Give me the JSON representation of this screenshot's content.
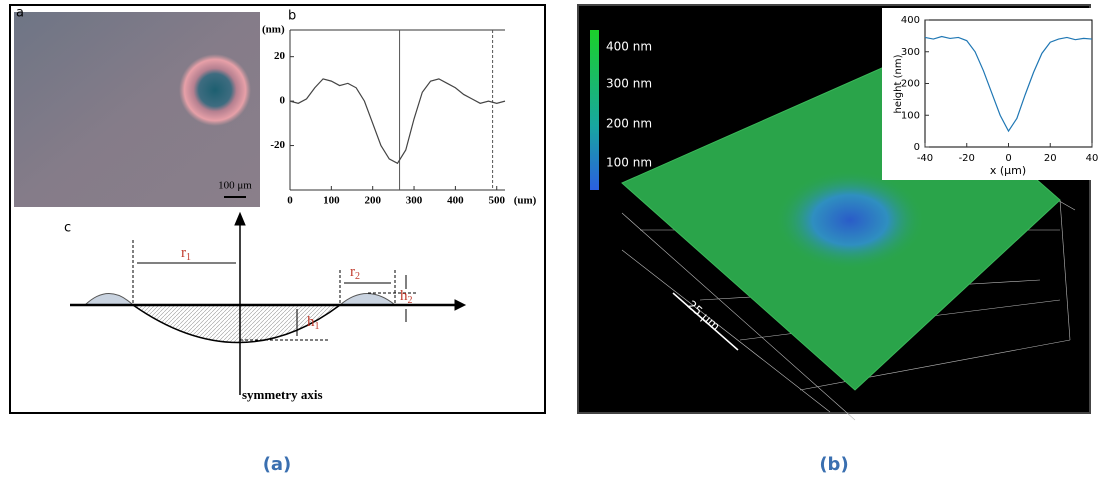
{
  "figure_a": {
    "caption": "(a)",
    "panel_labels": [
      "a",
      "b",
      "c"
    ],
    "scale_bar": "100 μm",
    "diagram": {
      "r1": {
        "label": "r",
        "sub": "1"
      },
      "r2": {
        "label": "r",
        "sub": "2"
      },
      "h1": {
        "label": "h",
        "sub": "1"
      },
      "h2": {
        "label": "h",
        "sub": "2"
      },
      "axis_label": "symmetry axis"
    }
  },
  "figure_b": {
    "caption": "(b)",
    "colorbar_labels": [
      "400 nm",
      "300 nm",
      "200 nm",
      "100 nm"
    ],
    "scale_label": "25 μm"
  },
  "chart_data": [
    {
      "type": "line",
      "ylabel": "(nm)",
      "xlabel": "(um)",
      "x": [
        0,
        20,
        40,
        60,
        80,
        100,
        120,
        140,
        160,
        180,
        200,
        220,
        240,
        260,
        280,
        300,
        320,
        340,
        360,
        380,
        400,
        420,
        440,
        460,
        480,
        500,
        520
      ],
      "series": [
        {
          "color": "#444444",
          "values": [
            0,
            -1,
            1,
            6,
            10,
            9,
            7,
            8,
            6,
            0,
            -10,
            -20,
            -26,
            -28,
            -22,
            -8,
            4,
            9,
            10,
            8,
            6,
            3,
            1,
            -1,
            0,
            -1,
            0
          ]
        }
      ],
      "vlines": [
        265,
        490
      ],
      "xlim": [
        0,
        520
      ],
      "ylim": [
        -40,
        32
      ],
      "xticks": [
        0,
        100,
        200,
        300,
        400,
        500
      ],
      "yticks": [
        20,
        0,
        -20
      ]
    },
    {
      "type": "line",
      "ylabel": "height (nm)",
      "xlabel": "x (μm)",
      "x": [
        -40,
        -36,
        -32,
        -28,
        -24,
        -20,
        -16,
        -12,
        -8,
        -4,
        0,
        4,
        8,
        12,
        16,
        20,
        24,
        28,
        32,
        36,
        40
      ],
      "series": [
        {
          "color": "#1f77b4",
          "values": [
            345,
            340,
            348,
            342,
            345,
            335,
            300,
            240,
            170,
            100,
            50,
            90,
            165,
            235,
            295,
            330,
            340,
            345,
            338,
            342,
            340
          ]
        }
      ],
      "xlim": [
        -40,
        40
      ],
      "ylim": [
        0,
        400
      ],
      "xticks": [
        -40,
        -20,
        0,
        20,
        40
      ],
      "yticks": [
        0,
        100,
        200,
        300,
        400
      ]
    }
  ]
}
